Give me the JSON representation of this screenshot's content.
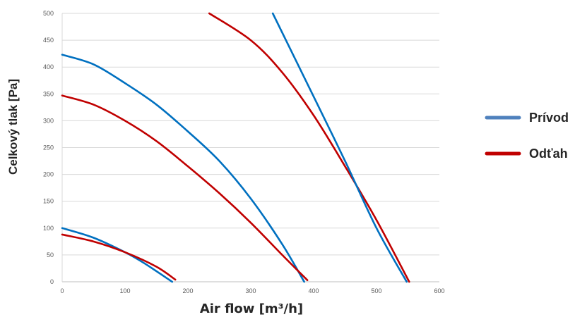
{
  "chart_data": {
    "type": "line",
    "xlabel": "Air flow [m³/h]",
    "ylabel": "Celkový tlak [Pa]",
    "xlim": [
      0,
      600
    ],
    "ylim": [
      0,
      500
    ],
    "x_ticks": [
      "0",
      "100",
      "200",
      "300",
      "400",
      "500",
      "600"
    ],
    "y_ticks": [
      "0",
      "50",
      "100",
      "150",
      "200",
      "250",
      "300",
      "350",
      "400",
      "450",
      "500"
    ],
    "grid": "horizontal",
    "legend_position": "right",
    "colors": {
      "Prívod": "#0070c0",
      "Odťah": "#c00000"
    },
    "legend": [
      {
        "name": "Prívod",
        "color": "#4f81bd"
      },
      {
        "name": "Odťah",
        "color": "#c00000"
      }
    ],
    "series": [
      {
        "name": "Prívod",
        "x": [
          0,
          50,
          100,
          130,
          175
        ],
        "y": [
          100,
          82,
          55,
          35,
          0
        ]
      },
      {
        "name": "Odťah",
        "x": [
          0,
          50,
          100,
          150,
          180
        ],
        "y": [
          88,
          75,
          55,
          28,
          4
        ]
      },
      {
        "name": "Prívod",
        "x": [
          0,
          50,
          100,
          150,
          200,
          250,
          300,
          350,
          385
        ],
        "y": [
          423,
          405,
          370,
          330,
          280,
          225,
          155,
          70,
          0
        ]
      },
      {
        "name": "Odťah",
        "x": [
          0,
          50,
          100,
          150,
          200,
          250,
          300,
          350,
          390
        ],
        "y": [
          347,
          330,
          300,
          262,
          215,
          165,
          110,
          50,
          3
        ]
      },
      {
        "name": "Odťah",
        "x": [
          234,
          300,
          350,
          400,
          450,
          500,
          552
        ],
        "y": [
          500,
          450,
          390,
          310,
          215,
          115,
          0
        ]
      },
      {
        "name": "Prívod",
        "x": [
          335,
          400,
          450,
          500,
          548
        ],
        "y": [
          500,
          345,
          225,
          100,
          0
        ]
      }
    ]
  }
}
